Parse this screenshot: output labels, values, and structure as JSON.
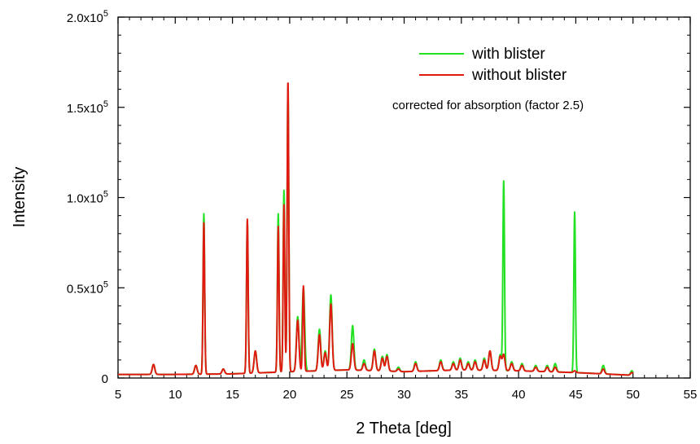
{
  "chart_data": {
    "type": "line",
    "xlabel": "2 Theta [deg]",
    "ylabel": "Intensity",
    "xlim": [
      5,
      55
    ],
    "ylim": [
      0,
      200000
    ],
    "x_ticks": [
      5,
      10,
      15,
      20,
      25,
      30,
      35,
      40,
      45,
      50,
      55
    ],
    "y_ticks": [
      {
        "value": 0,
        "mantissa": "0",
        "exponent": ""
      },
      {
        "value": 50000,
        "mantissa": "0.5x10",
        "exponent": "5"
      },
      {
        "value": 100000,
        "mantissa": "1.0x10",
        "exponent": "5"
      },
      {
        "value": 150000,
        "mantissa": "1.5x10",
        "exponent": "5"
      },
      {
        "value": 200000,
        "mantissa": "2.0x10",
        "exponent": "5"
      }
    ],
    "grid": false,
    "legend_position": "top-right",
    "annotation": "corrected for absorption (factor 2.5)",
    "x_range": [
      5.0,
      50.0
    ],
    "baselines": [
      {
        "x": 5.0,
        "y": 2000
      },
      {
        "x": 10.0,
        "y": 2000
      },
      {
        "x": 15.0,
        "y": 2300
      },
      {
        "x": 20.0,
        "y": 3500
      },
      {
        "x": 25.0,
        "y": 4500
      },
      {
        "x": 28.0,
        "y": 4000
      },
      {
        "x": 30.0,
        "y": 3500
      },
      {
        "x": 35.0,
        "y": 4500
      },
      {
        "x": 40.0,
        "y": 4000
      },
      {
        "x": 45.0,
        "y": 3000
      },
      {
        "x": 50.0,
        "y": 1500
      }
    ],
    "series": [
      {
        "name": "with blister",
        "color": "#22e022",
        "peaks": [
          {
            "x": 8.1,
            "y": 7500
          },
          {
            "x": 11.8,
            "y": 7000
          },
          {
            "x": 12.5,
            "y": 91000
          },
          {
            "x": 14.2,
            "y": 5000
          },
          {
            "x": 16.3,
            "y": 87000
          },
          {
            "x": 17.0,
            "y": 15000
          },
          {
            "x": 19.0,
            "y": 91000
          },
          {
            "x": 19.5,
            "y": 104000
          },
          {
            "x": 19.85,
            "y": 162000
          },
          {
            "x": 20.7,
            "y": 34000
          },
          {
            "x": 21.2,
            "y": 50000
          },
          {
            "x": 22.6,
            "y": 27000
          },
          {
            "x": 23.1,
            "y": 15000
          },
          {
            "x": 23.6,
            "y": 46000
          },
          {
            "x": 25.5,
            "y": 29000
          },
          {
            "x": 26.5,
            "y": 10000
          },
          {
            "x": 27.4,
            "y": 16000
          },
          {
            "x": 28.1,
            "y": 12000
          },
          {
            "x": 28.5,
            "y": 13000
          },
          {
            "x": 29.5,
            "y": 6000
          },
          {
            "x": 31.0,
            "y": 9000
          },
          {
            "x": 33.2,
            "y": 10000
          },
          {
            "x": 34.3,
            "y": 9000
          },
          {
            "x": 34.9,
            "y": 11000
          },
          {
            "x": 35.6,
            "y": 9000
          },
          {
            "x": 36.2,
            "y": 10000
          },
          {
            "x": 37.0,
            "y": 11000
          },
          {
            "x": 37.5,
            "y": 15000
          },
          {
            "x": 38.4,
            "y": 13000
          },
          {
            "x": 38.7,
            "y": 109000
          },
          {
            "x": 39.4,
            "y": 9000
          },
          {
            "x": 40.3,
            "y": 8000
          },
          {
            "x": 41.5,
            "y": 7000
          },
          {
            "x": 42.5,
            "y": 7000
          },
          {
            "x": 43.2,
            "y": 8000
          },
          {
            "x": 44.9,
            "y": 92000
          },
          {
            "x": 47.4,
            "y": 7000
          },
          {
            "x": 49.9,
            "y": 4000
          }
        ]
      },
      {
        "name": "without blister",
        "color": "#e01a10",
        "peaks": [
          {
            "x": 8.1,
            "y": 7500
          },
          {
            "x": 11.8,
            "y": 7000
          },
          {
            "x": 12.5,
            "y": 86000
          },
          {
            "x": 14.2,
            "y": 5000
          },
          {
            "x": 16.3,
            "y": 88000
          },
          {
            "x": 17.0,
            "y": 15000
          },
          {
            "x": 19.0,
            "y": 84000
          },
          {
            "x": 19.5,
            "y": 96000
          },
          {
            "x": 19.85,
            "y": 165000
          },
          {
            "x": 20.7,
            "y": 32000
          },
          {
            "x": 21.2,
            "y": 51000
          },
          {
            "x": 22.6,
            "y": 24000
          },
          {
            "x": 23.1,
            "y": 14000
          },
          {
            "x": 23.6,
            "y": 41000
          },
          {
            "x": 25.5,
            "y": 19000
          },
          {
            "x": 26.5,
            "y": 8000
          },
          {
            "x": 27.4,
            "y": 15000
          },
          {
            "x": 28.1,
            "y": 11000
          },
          {
            "x": 28.5,
            "y": 12000
          },
          {
            "x": 29.5,
            "y": 5000
          },
          {
            "x": 31.0,
            "y": 8000
          },
          {
            "x": 33.2,
            "y": 9000
          },
          {
            "x": 34.3,
            "y": 8000
          },
          {
            "x": 34.9,
            "y": 10000
          },
          {
            "x": 35.6,
            "y": 8000
          },
          {
            "x": 36.2,
            "y": 9000
          },
          {
            "x": 37.0,
            "y": 10000
          },
          {
            "x": 37.5,
            "y": 15000
          },
          {
            "x": 38.4,
            "y": 12000
          },
          {
            "x": 38.7,
            "y": 13000
          },
          {
            "x": 39.4,
            "y": 8000
          },
          {
            "x": 40.3,
            "y": 7000
          },
          {
            "x": 41.5,
            "y": 6000
          },
          {
            "x": 42.5,
            "y": 6000
          },
          {
            "x": 43.2,
            "y": 6000
          },
          {
            "x": 44.9,
            "y": 4000
          },
          {
            "x": 47.4,
            "y": 5000
          },
          {
            "x": 49.9,
            "y": 3000
          }
        ]
      }
    ]
  }
}
